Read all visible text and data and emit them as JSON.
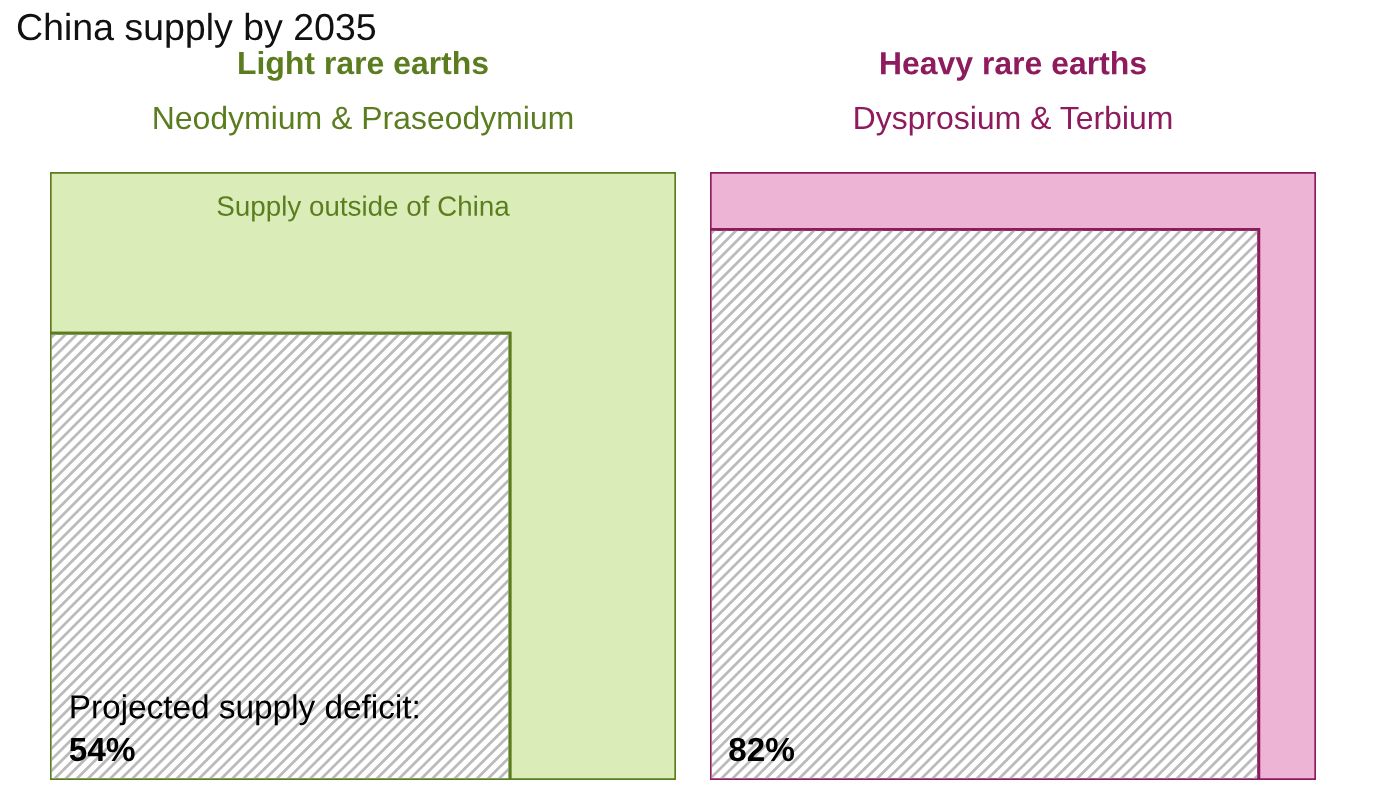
{
  "chart_data": [
    {
      "type": "other",
      "title": "Light rare earths",
      "subtitle": "Neodymium & Praseodymium",
      "annotations": [
        "China supply by 2035",
        "Supply outside of China",
        "Projected supply deficit:"
      ],
      "series": [
        {
          "color": "#5b7d1f",
          "values": [
            54
          ],
          "value_labels": [
            "54%"
          ]
        }
      ]
    },
    {
      "type": "other",
      "title": "Heavy rare earths",
      "subtitle": "Dysprosium & Terbium",
      "series": [
        {
          "color": "#8e1b5d",
          "values": [
            82
          ],
          "value_labels": [
            "82%"
          ]
        }
      ]
    }
  ]
}
